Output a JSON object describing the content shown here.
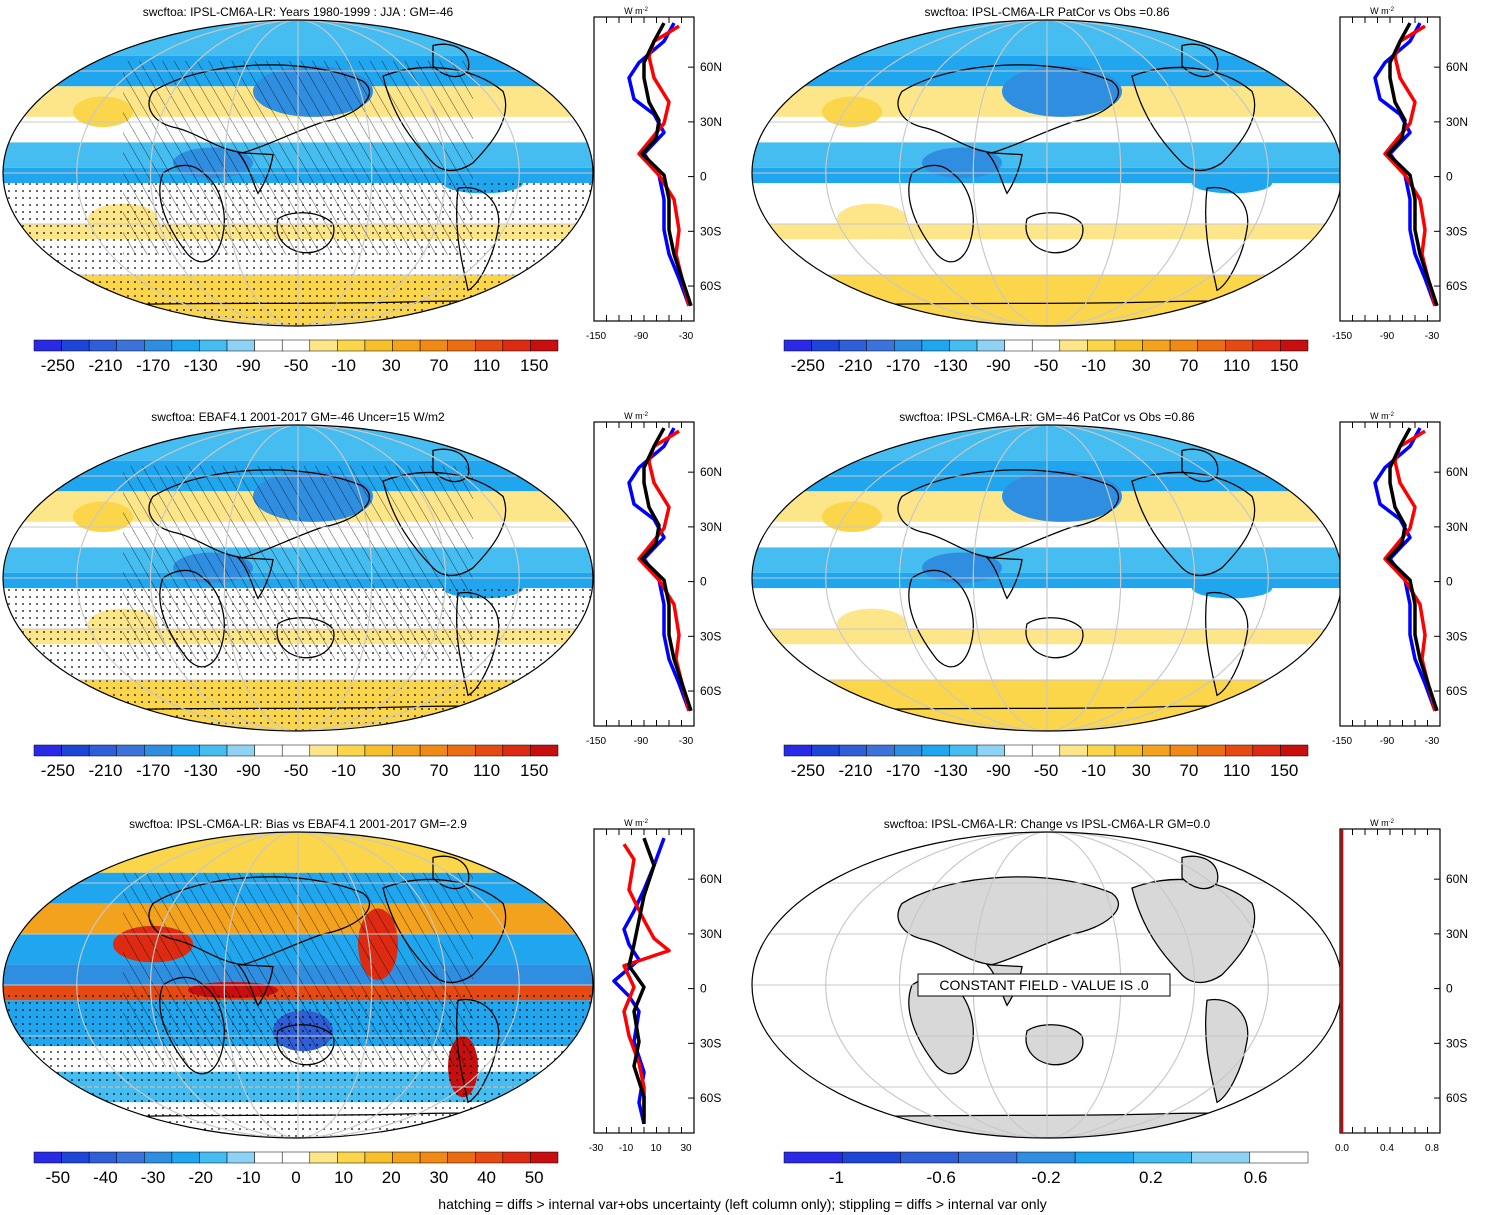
{
  "footnote": "hatching = diffs > internal var+obs uncertainty (left column only); stippling = diffs > internal var only",
  "colors": {
    "blues": [
      "#2a2ae6",
      "#1d45d8",
      "#2f5fd6",
      "#3c73da",
      "#2f8ee0",
      "#1fa6ee",
      "#46bdf0",
      "#8fd3f4"
    ],
    "yellows": [
      "#fde68a",
      "#fbd54a",
      "#f7c02a",
      "#f2a21c",
      "#ef8a16",
      "#ea6d14",
      "#e44a12",
      "#dc2b12",
      "#c80f10"
    ],
    "land_gray": "#d8d8d8",
    "profile_model": "#000000",
    "profile_obs": "#ff0000",
    "profile_blue": "#0000ff"
  },
  "rows": [
    {
      "left": {
        "title": "swcftoa: IPSL-CM6A-LR: Years 1980-1999 : JJA : GM=-46",
        "colorbar_labels": [
          "-250",
          "-210",
          "-170",
          "-130",
          "-90",
          "-50",
          "-10",
          "30",
          "70",
          "110",
          "150"
        ],
        "unit": "W m",
        "unit_sup": "-2",
        "profile_ticks": [
          "-150",
          "-90",
          "-30"
        ]
      },
      "right": {
        "title": "swcftoa: IPSL-CM6A-LR PatCor vs Obs =0.86",
        "colorbar_labels": [
          "-250",
          "-210",
          "-170",
          "-130",
          "-90",
          "-50",
          "-10",
          "30",
          "70",
          "110",
          "150"
        ],
        "unit": "W m",
        "unit_sup": "-2",
        "profile_ticks": [
          "-150",
          "-90",
          "-30"
        ]
      }
    },
    {
      "left": {
        "title": "swcftoa: EBAF4.1 2001-2017 GM=-46 Uncer=15 W/m2",
        "colorbar_labels": [
          "-250",
          "-210",
          "-170",
          "-130",
          "-90",
          "-50",
          "-10",
          "30",
          "70",
          "110",
          "150"
        ],
        "unit": "W m",
        "unit_sup": "-2",
        "profile_ticks": [
          "-150",
          "-90",
          "-30"
        ]
      },
      "right": {
        "title": "swcftoa: IPSL-CM6A-LR: GM=-46 PatCor vs Obs =0.86",
        "colorbar_labels": [
          "-250",
          "-210",
          "-170",
          "-130",
          "-90",
          "-50",
          "-10",
          "30",
          "70",
          "110",
          "150"
        ],
        "unit": "W m",
        "unit_sup": "-2",
        "profile_ticks": [
          "-150",
          "-90",
          "-30"
        ]
      }
    },
    {
      "left": {
        "title": "swcftoa: IPSL-CM6A-LR: Bias vs EBAF4.1 2001-2017 GM=-2.9",
        "colorbar_labels": [
          "-50",
          "-40",
          "-30",
          "-20",
          "-10",
          "0",
          "10",
          "20",
          "30",
          "40",
          "50"
        ],
        "unit": "W m",
        "unit_sup": "-2",
        "profile_ticks": [
          "-30",
          "-10",
          "10",
          "30"
        ]
      },
      "right": {
        "title": "swcftoa: IPSL-CM6A-LR: Change vs IPSL-CM6A-LR GM=0.0",
        "colorbar_labels": [
          "-1",
          "-0.6",
          "-0.2",
          "0.2",
          "0.6"
        ],
        "constant_label": "CONSTANT FIELD - VALUE IS .0",
        "unit": "W m",
        "unit_sup": "-2",
        "profile_ticks": [
          "0.0",
          "0.4",
          "0.8"
        ]
      }
    }
  ],
  "lat_labels": [
    "60N",
    "30N",
    "0",
    "30S",
    "60S"
  ]
}
